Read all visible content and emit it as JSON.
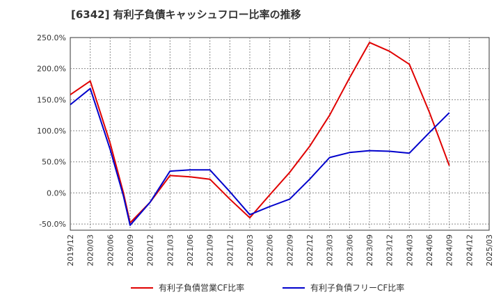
{
  "title": "[6342]  有利子負債キャッシュフロー比率の推移",
  "chart_data": {
    "type": "line",
    "title": "[6342]  有利子負債キャッシュフロー比率の推移",
    "ylim": [
      -60,
      250
    ],
    "yticks": [
      "-50.0%",
      "0.0%",
      "50.0%",
      "100.0%",
      "150.0%",
      "200.0%",
      "250.0%"
    ],
    "ytick_values": [
      -50,
      0,
      50,
      100,
      150,
      200,
      250
    ],
    "categories": [
      "2019/12",
      "2020/03",
      "2020/06",
      "2020/09",
      "2020/12",
      "2021/03",
      "2021/06",
      "2021/09",
      "2021/12",
      "2022/03",
      "2022/06",
      "2022/09",
      "2022/12",
      "2023/03",
      "2023/06",
      "2023/09",
      "2023/12",
      "2024/03",
      "2024/06",
      "2024/09",
      "2024/12",
      "2025/03"
    ],
    "grid": true,
    "legend_position": "bottom",
    "series": [
      {
        "name": "有利子負債営業CF比率",
        "color": "#e00000",
        "x": [
          "2019/12",
          "2020/03",
          "2020/06",
          "2020/08",
          "2020/09",
          "2020/12",
          "2021/03",
          "2021/06",
          "2021/09",
          "2021/12",
          "2022/03",
          "2022/06",
          "2022/09",
          "2022/12",
          "2023/03",
          "2023/06",
          "2023/09",
          "2023/12",
          "2024/03",
          "2024/06",
          "2024/09"
        ],
        "values": [
          158,
          180,
          80,
          0,
          -48,
          -15,
          28,
          26,
          22,
          -10,
          -40,
          -3,
          33,
          75,
          125,
          185,
          242,
          228,
          207,
          130,
          44
        ]
      },
      {
        "name": "有利子負債フリーCF比率",
        "color": "#0000cc",
        "x": [
          "2019/12",
          "2020/03",
          "2020/06",
          "2020/08",
          "2020/09",
          "2020/12",
          "2021/03",
          "2021/06",
          "2021/09",
          "2021/12",
          "2022/03",
          "2022/06",
          "2022/09",
          "2022/12",
          "2023/03",
          "2023/06",
          "2023/09",
          "2023/12",
          "2024/03",
          "2024/06",
          "2024/09"
        ],
        "values": [
          142,
          168,
          70,
          -5,
          -52,
          -15,
          35,
          37,
          37,
          2,
          -35,
          -22,
          -10,
          22,
          57,
          65,
          68,
          67,
          64,
          97,
          129
        ]
      }
    ]
  }
}
